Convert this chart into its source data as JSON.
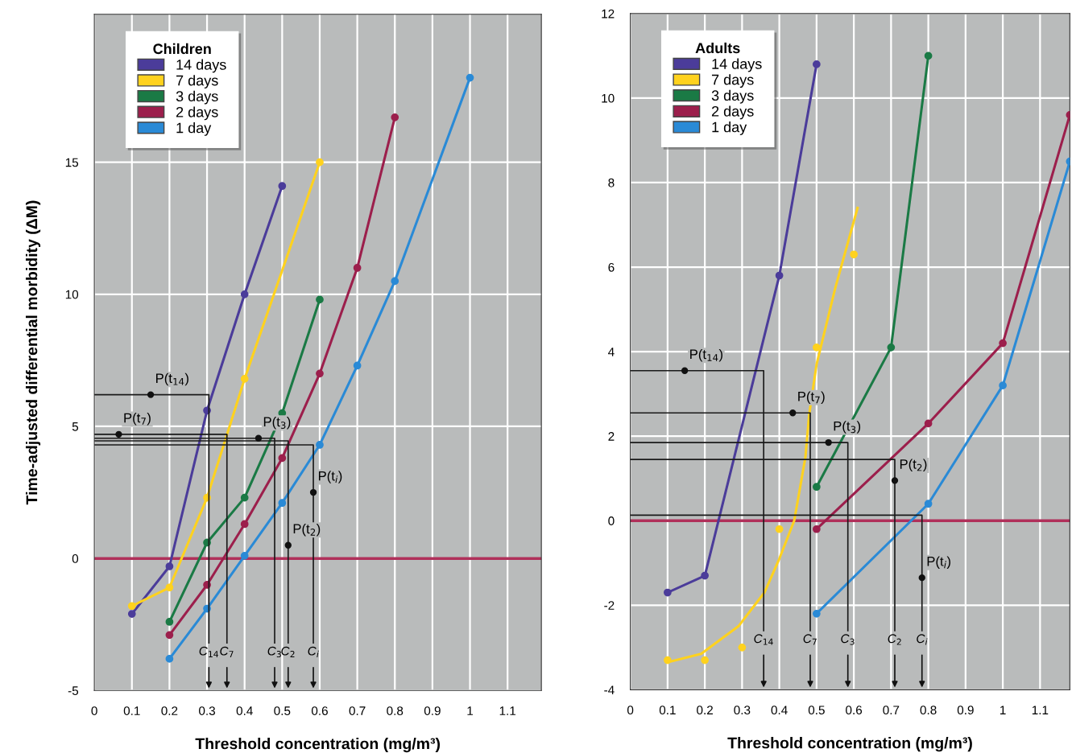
{
  "chart_data": [
    {
      "type": "line",
      "ylabel": "Time-adjusted differential morbidity (ΔM)",
      "xlabel": "Threshold concentration (mg/m³)",
      "legend_title": "Children",
      "legend": "top left",
      "grid": true,
      "marker": "circle",
      "xlim": [
        0,
        1.19
      ],
      "ylim": [
        -5,
        20.6
      ],
      "xticks": [
        0,
        0.1,
        0.2,
        0.3,
        0.4,
        0.5,
        0.6,
        0.7,
        0.8,
        0.9,
        1,
        1.1
      ],
      "yticks": [
        -5,
        0,
        5,
        10,
        15
      ],
      "series": [
        {
          "name": "14 days",
          "color": "#4b3c9a",
          "x": [
            0.1,
            0.2,
            0.3,
            0.4,
            0.5
          ],
          "values": [
            -2.1,
            -0.3,
            5.6,
            10.0,
            14.1
          ]
        },
        {
          "name": "7 days",
          "color": "#ffd21e",
          "x": [
            0.1,
            0.2,
            0.3,
            0.4,
            0.6
          ],
          "values": [
            -1.8,
            -1.1,
            2.3,
            6.8,
            15.0
          ]
        },
        {
          "name": "3 days",
          "color": "#1a7a45",
          "x": [
            0.2,
            0.3,
            0.4,
            0.5,
            0.6
          ],
          "values": [
            -2.4,
            0.6,
            2.3,
            5.5,
            9.8
          ]
        },
        {
          "name": "2 days",
          "color": "#9c1f4c",
          "x": [
            0.2,
            0.3,
            0.4,
            0.5,
            0.6,
            0.7,
            0.8
          ],
          "values": [
            -2.9,
            -1.0,
            1.3,
            3.8,
            7.0,
            11.0,
            16.7
          ]
        },
        {
          "name": "1 day",
          "color": "#2a8ad6",
          "x": [
            0.2,
            0.3,
            0.4,
            0.5,
            0.6,
            0.7,
            0.8,
            1.0
          ],
          "values": [
            -3.8,
            -1.9,
            0.1,
            2.1,
            4.3,
            7.3,
            10.5,
            18.2
          ]
        },
        {
          "color": "#1a1a1a",
          "marker": "none",
          "x": [
            0,
            0.305,
            0.305
          ],
          "values": [
            6.2,
            6.2,
            -3.2
          ]
        },
        {
          "color": "#1a1a1a",
          "marker": "none",
          "x": [
            0,
            0.353,
            0.353
          ],
          "values": [
            4.7,
            4.7,
            -3.2
          ]
        },
        {
          "color": "#1a1a1a",
          "marker": "none",
          "x": [
            0,
            0.48,
            0.48
          ],
          "values": [
            4.55,
            4.55,
            -3.2
          ]
        },
        {
          "color": "#1a1a1a",
          "marker": "none",
          "x": [
            0,
            0.516,
            0.516
          ],
          "values": [
            4.45,
            4.45,
            -3.2
          ]
        },
        {
          "color": "#1a1a1a",
          "marker": "none",
          "x": [
            0,
            0.583,
            0.583
          ],
          "values": [
            4.3,
            4.3,
            -3.2
          ]
        }
      ],
      "ref_lines": [
        {
          "axis": "y",
          "value": 0,
          "color": "#b0305a"
        }
      ],
      "annotations": [
        {
          "text": "P(t$_{14}$)",
          "x": 0.15,
          "y": 6.2
        },
        {
          "text": "P(t$_{7}$)",
          "x": 0.065,
          "y": 4.7
        },
        {
          "text": "P(t$_{3}$)",
          "x": 0.437,
          "y": 4.55
        },
        {
          "text": "P(t$_{i}$)",
          "x": 0.583,
          "y": 2.5
        },
        {
          "text": "P(t$_{2}$)",
          "x": 0.516,
          "y": 0.5
        },
        {
          "text": "C$_{14}$",
          "x": 0.305,
          "y": -3.2
        },
        {
          "text": "C$_{7}$",
          "x": 0.353,
          "y": -3.2
        },
        {
          "text": "C$_{3}$",
          "x": 0.48,
          "y": -3.2
        },
        {
          "text": "C$_{2}$",
          "x": 0.516,
          "y": -3.2
        },
        {
          "text": "C$_{i}$",
          "x": 0.583,
          "y": -3.2
        }
      ]
    },
    {
      "type": "line",
      "xlabel": "Threshold concentration (mg/m³)",
      "legend_title": "Adults",
      "legend": "top left",
      "grid": true,
      "marker": "circle",
      "xlim": [
        0,
        1.18
      ],
      "ylim": [
        -4,
        12
      ],
      "xticks": [
        0,
        0.1,
        0.2,
        0.3,
        0.4,
        0.5,
        0.6,
        0.7,
        0.8,
        0.9,
        1,
        1.1
      ],
      "yticks": [
        -4,
        -2,
        0,
        2,
        4,
        6,
        8,
        10,
        12
      ],
      "series": [
        {
          "name": "14 days",
          "color": "#4b3c9a",
          "x": [
            0.1,
            0.2,
            0.4,
            0.5
          ],
          "values": [
            -1.7,
            -1.3,
            5.8,
            10.8
          ]
        },
        {
          "name": "7 days",
          "color": "#ffd21e",
          "marker": "none",
          "x": [
            0.1,
            0.19,
            0.29,
            0.36,
            0.4,
            0.44,
            0.47,
            0.48,
            0.5,
            0.55,
            0.61
          ],
          "values": [
            -3.35,
            -3.15,
            -2.5,
            -1.7,
            -0.9,
            0.0,
            1.5,
            2.5,
            3.7,
            5.5,
            7.4
          ]
        },
        {
          "type": "scatter",
          "color": "#ffd21e",
          "x": [
            0.1,
            0.2,
            0.3,
            0.4,
            0.5,
            0.6
          ],
          "values": [
            -3.3,
            -3.3,
            -3.0,
            -0.2,
            4.1,
            6.3
          ]
        },
        {
          "name": "3 days",
          "color": "#1a7a45",
          "x": [
            0.5,
            0.7,
            0.8
          ],
          "values": [
            0.8,
            4.1,
            11.0
          ]
        },
        {
          "name": "2 days",
          "color": "#9c1f4c",
          "x": [
            0.5,
            0.8,
            1.0,
            1.18
          ],
          "values": [
            -0.2,
            2.3,
            4.2,
            9.6
          ]
        },
        {
          "name": "1 day",
          "color": "#2a8ad6",
          "x": [
            0.5,
            0.8,
            1.0,
            1.18
          ],
          "values": [
            -2.2,
            0.4,
            3.2,
            8.5
          ]
        },
        {
          "color": "#1a1a1a",
          "marker": "none",
          "x": [
            0,
            0.358,
            0.358
          ],
          "values": [
            3.55,
            3.55,
            -2.6
          ]
        },
        {
          "color": "#1a1a1a",
          "marker": "none",
          "x": [
            0,
            0.483,
            0.483
          ],
          "values": [
            2.55,
            2.55,
            -2.6
          ]
        },
        {
          "color": "#1a1a1a",
          "marker": "none",
          "x": [
            0,
            0.584,
            0.584
          ],
          "values": [
            1.85,
            1.85,
            -2.6
          ]
        },
        {
          "color": "#1a1a1a",
          "marker": "none",
          "x": [
            0,
            0.71,
            0.71
          ],
          "values": [
            1.45,
            1.45,
            -2.6
          ]
        },
        {
          "color": "#1a1a1a",
          "marker": "none",
          "x": [
            0,
            0.783,
            0.783
          ],
          "values": [
            0.13,
            0.13,
            -2.6
          ]
        }
      ],
      "ref_lines": [
        {
          "axis": "y",
          "value": 0,
          "color": "#b0305a"
        }
      ],
      "annotations": [
        {
          "text": "P(t$_{14}$)",
          "x": 0.146,
          "y": 3.55
        },
        {
          "text": "P(t$_{7}$)",
          "x": 0.436,
          "y": 2.55
        },
        {
          "text": "P(t$_{3}$)",
          "x": 0.532,
          "y": 1.85
        },
        {
          "text": "P(t$_{2}$)",
          "x": 0.71,
          "y": 0.95
        },
        {
          "text": "P(t$_{i}$)",
          "x": 0.783,
          "y": -1.35
        },
        {
          "text": "C$_{14}$",
          "x": 0.358,
          "y": -2.6
        },
        {
          "text": "C$_{7}$",
          "x": 0.483,
          "y": -2.6
        },
        {
          "text": "C$_{3}$",
          "x": 0.584,
          "y": -2.6
        },
        {
          "text": "C$_{2}$",
          "x": 0.71,
          "y": -2.6
        },
        {
          "text": "C$_{i}$",
          "x": 0.783,
          "y": -2.6
        }
      ]
    }
  ]
}
